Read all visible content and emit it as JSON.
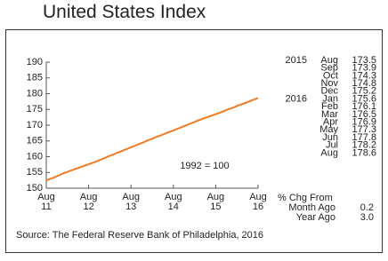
{
  "chart_data": {
    "type": "line",
    "title": "United States Index",
    "annotation": "1992 = 100",
    "source": "Source: The Federal Reserve Bank of Philadelphia, 2016",
    "categories": [
      "Aug 11",
      null,
      null,
      null,
      null,
      null,
      null,
      null,
      null,
      null,
      null,
      null,
      "Aug 12",
      null,
      null,
      null,
      null,
      null,
      null,
      null,
      null,
      null,
      null,
      null,
      "Aug 13",
      null,
      null,
      null,
      null,
      null,
      null,
      null,
      null,
      null,
      null,
      null,
      "Aug 14",
      null,
      null,
      null,
      null,
      null,
      null,
      null,
      null,
      null,
      null,
      null,
      "Aug 15",
      null,
      null,
      null,
      null,
      null,
      null,
      null,
      null,
      null,
      null,
      null,
      "Aug 16"
    ],
    "values": [
      152.5,
      152.9,
      153.3,
      153.8,
      154.3,
      154.8,
      155.2,
      155.6,
      156.0,
      156.4,
      156.8,
      157.2,
      157.6,
      158.0,
      158.4,
      158.9,
      159.3,
      159.8,
      160.3,
      160.7,
      161.2,
      161.6,
      162.1,
      162.5,
      163.0,
      163.4,
      163.9,
      164.3,
      164.8,
      165.3,
      165.7,
      166.2,
      166.6,
      167.0,
      167.5,
      167.9,
      168.3,
      168.8,
      169.2,
      169.7,
      170.1,
      170.6,
      171.0,
      171.5,
      171.9,
      172.3,
      172.7,
      173.1,
      173.5,
      173.9,
      174.3,
      174.8,
      175.2,
      175.6,
      176.1,
      176.5,
      176.9,
      177.3,
      177.8,
      178.2,
      178.6
    ],
    "color": "#f07b22",
    "ylim": [
      150,
      190
    ],
    "yticks": [
      150,
      155,
      160,
      165,
      170,
      175,
      180,
      185,
      190
    ]
  },
  "side_table": {
    "rows": [
      [
        "2015",
        "Aug",
        "173.5"
      ],
      [
        null,
        "Sep",
        "173.9"
      ],
      [
        null,
        "Oct",
        "174.3"
      ],
      [
        null,
        "Nov",
        "174.8"
      ],
      [
        null,
        "Dec",
        "175.2"
      ],
      [
        "2016",
        "Jan",
        "175.6"
      ],
      [
        null,
        "Feb",
        "176.1"
      ],
      [
        null,
        "Mar",
        "176.5"
      ],
      [
        null,
        "Apr",
        "176.9"
      ],
      [
        null,
        "May",
        "177.3"
      ],
      [
        null,
        "Jun",
        "177.8"
      ],
      [
        null,
        "Jul",
        "178.2"
      ],
      [
        null,
        "Aug",
        "178.6"
      ]
    ],
    "change_heading": "% Chg From",
    "changes": [
      [
        "Month Ago",
        "0.2"
      ],
      [
        "Year Ago",
        "3.0"
      ]
    ]
  }
}
